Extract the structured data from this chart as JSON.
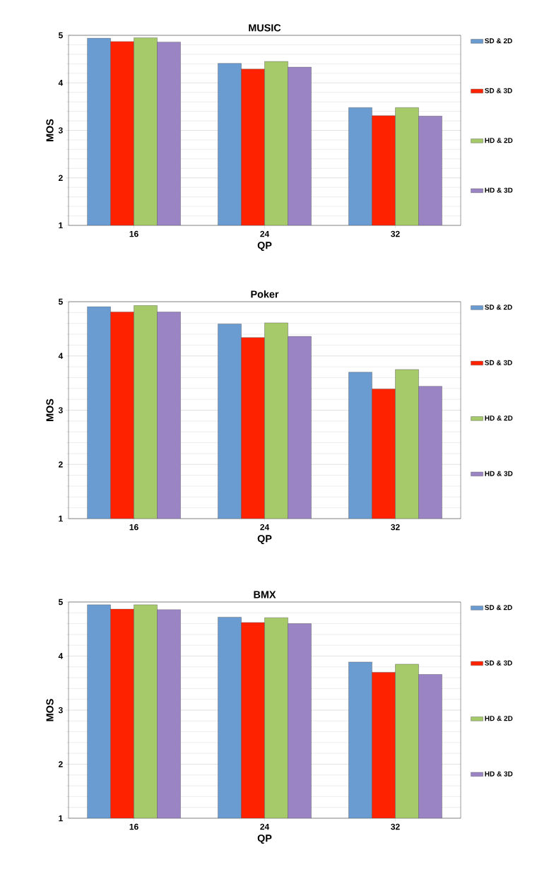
{
  "chart_data": [
    {
      "type": "bar",
      "title": "MUSIC",
      "xlabel": "QP",
      "ylabel": "MOS",
      "categories": [
        "16",
        "24",
        "32"
      ],
      "ylim": [
        1,
        5
      ],
      "yticks": [
        1,
        2,
        3,
        4,
        5
      ],
      "grid": "y",
      "legend": "right",
      "series": [
        {
          "name": "SD & 2D",
          "color": "#6a9bd1",
          "values": [
            4.94,
            4.41,
            3.48
          ]
        },
        {
          "name": "SD & 3D",
          "color": "#ff2200",
          "values": [
            4.87,
            4.29,
            3.31
          ]
        },
        {
          "name": "HD & 2D",
          "color": "#a6c96a",
          "values": [
            4.95,
            4.45,
            3.48
          ]
        },
        {
          "name": "HD & 3D",
          "color": "#9b84c4",
          "values": [
            4.86,
            4.33,
            3.3
          ]
        }
      ]
    },
    {
      "type": "bar",
      "title": "Poker",
      "xlabel": "QP",
      "ylabel": "MOS",
      "categories": [
        "16",
        "24",
        "32"
      ],
      "ylim": [
        1,
        5
      ],
      "yticks": [
        1,
        2,
        3,
        4,
        5
      ],
      "grid": "y",
      "legend": "right",
      "series": [
        {
          "name": "SD & 2D",
          "color": "#6a9bd1",
          "values": [
            4.91,
            4.59,
            3.7
          ]
        },
        {
          "name": "SD & 3D",
          "color": "#ff2200",
          "values": [
            4.81,
            4.34,
            3.39
          ]
        },
        {
          "name": "HD & 2D",
          "color": "#a6c96a",
          "values": [
            4.93,
            4.61,
            3.75
          ]
        },
        {
          "name": "HD & 3D",
          "color": "#9b84c4",
          "values": [
            4.81,
            4.36,
            3.44
          ]
        }
      ]
    },
    {
      "type": "bar",
      "title": "BMX",
      "xlabel": "QP",
      "ylabel": "MOS",
      "categories": [
        "16",
        "24",
        "32"
      ],
      "ylim": [
        1,
        5
      ],
      "yticks": [
        1,
        2,
        3,
        4,
        5
      ],
      "grid": "y",
      "legend": "right",
      "series": [
        {
          "name": "SD & 2D",
          "color": "#6a9bd1",
          "values": [
            4.95,
            4.72,
            3.89
          ]
        },
        {
          "name": "SD & 3D",
          "color": "#ff2200",
          "values": [
            4.87,
            4.62,
            3.7
          ]
        },
        {
          "name": "HD & 2D",
          "color": "#a6c96a",
          "values": [
            4.95,
            4.71,
            3.85
          ]
        },
        {
          "name": "HD & 3D",
          "color": "#9b84c4",
          "values": [
            4.86,
            4.6,
            3.66
          ]
        }
      ]
    }
  ]
}
